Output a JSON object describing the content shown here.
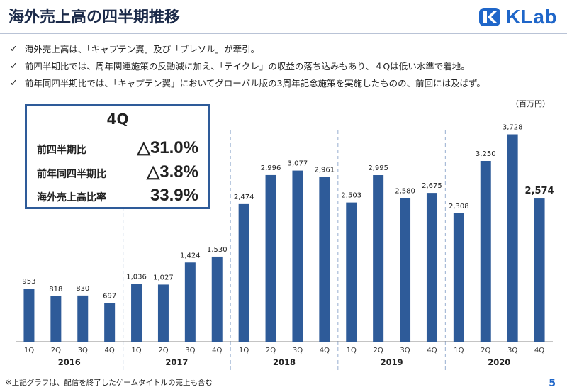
{
  "header": {
    "title": "海外売上高の四半期推移",
    "logo_text": "KLab"
  },
  "bullets": [
    "「キャプテン翼」及び「ブレソル」が牽引。",
    "前四半期比では、周年関連施策の反動減に加え、「テイクレ」の収益の落ち込みもあり、４Qは低い水準で着地。",
    "前年同四半期比では、「キャプテン翼」においてグローバル版の3周年記念施策を実施したものの、前回には及ばず。"
  ],
  "bullet_prefix": "海外売上高は、",
  "bullet_prefix_text": "",
  "unit": "（百万円）",
  "kpi": {
    "quarter": "4Q",
    "rows": [
      {
        "label": "前四半期比",
        "value": "△31.0%"
      },
      {
        "label": "前年同四半期比",
        "value": "△3.8%"
      },
      {
        "label": "海外売上高比率",
        "value": "33.9%"
      }
    ]
  },
  "chart_data": {
    "type": "bar",
    "categories": [
      "1Q",
      "2Q",
      "3Q",
      "4Q",
      "1Q",
      "2Q",
      "3Q",
      "4Q",
      "1Q",
      "2Q",
      "3Q",
      "4Q",
      "1Q",
      "2Q",
      "3Q",
      "4Q",
      "1Q",
      "2Q",
      "3Q",
      "4Q"
    ],
    "groups": [
      "2016",
      "2017",
      "2018",
      "2019",
      "2020"
    ],
    "values": [
      953,
      818,
      830,
      697,
      1036,
      1027,
      1424,
      1530,
      2474,
      2996,
      3077,
      2961,
      2503,
      2995,
      2580,
      2675,
      2308,
      3250,
      3728,
      2574
    ],
    "value_labels": [
      "953",
      "818",
      "830",
      "697",
      "1,036",
      "1,027",
      "1,424",
      "1,530",
      "2,474",
      "2,996",
      "3,077",
      "2,961",
      "2,503",
      "2,995",
      "2,580",
      "2,675",
      "2,308",
      "3,250",
      "3,728",
      "2,574"
    ],
    "highlight_index": 19,
    "bar_color": "#2e5b99",
    "ylim": [
      0,
      3900
    ]
  },
  "footnote": "※上記グラフは、配信を終了したゲームタイトルの売上も含む",
  "page_number": "5"
}
